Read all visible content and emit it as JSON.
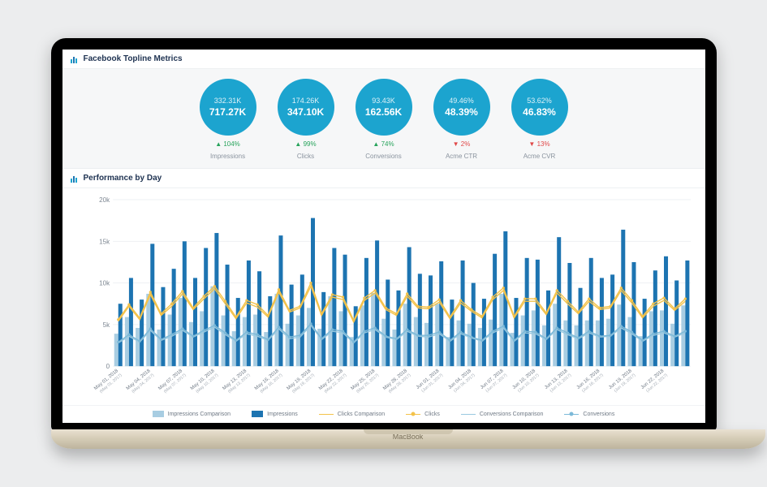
{
  "header": {
    "title": "Facebook Topline Metrics"
  },
  "kpi": {
    "circle_color": "#1ca4cf",
    "items": [
      {
        "prev": "332.31K",
        "current": "717.27K",
        "delta": "▲ 104%",
        "dir": "up",
        "label": "Impressions"
      },
      {
        "prev": "174.26K",
        "current": "347.10K",
        "delta": "▲ 99%",
        "dir": "up",
        "label": "Clicks"
      },
      {
        "prev": "93.43K",
        "current": "162.56K",
        "delta": "▲ 74%",
        "dir": "up",
        "label": "Conversions"
      },
      {
        "prev": "49.46%",
        "current": "48.39%",
        "delta": "▼ 2%",
        "dir": "down",
        "label": "Acme CTR"
      },
      {
        "prev": "53.62%",
        "current": "46.83%",
        "delta": "▼ 13%",
        "dir": "down",
        "label": "Acme CVR"
      }
    ]
  },
  "chart": {
    "title": "Performance by Day",
    "y_ticks": [
      0,
      5000,
      10000,
      15000,
      20000
    ],
    "y_tick_labels": [
      "0",
      "5k",
      "10k",
      "15k",
      "20k"
    ],
    "y_max": 20000,
    "colors": {
      "bar_comparison": "#a8cde2",
      "bar_current": "#1d74b1",
      "line_clicks_comparison": "#f3c24a",
      "line_clicks": "#f3c24a",
      "line_conversions_comparison": "#9ac9e0",
      "line_conversions": "#7cb9d8",
      "grid": "#eef1f3",
      "axis_text": "#7d8792"
    },
    "categories": [
      {
        "main": "May 01, 2018",
        "sub": "(May 01, 2017)"
      },
      {
        "main": "May 04, 2018",
        "sub": "(May 04, 2017)"
      },
      {
        "main": "May 07, 2018",
        "sub": "(May 07, 2017)"
      },
      {
        "main": "May 10, 2018",
        "sub": "(May 10, 2017)"
      },
      {
        "main": "May 13, 2018",
        "sub": "(May 13, 2017)"
      },
      {
        "main": "May 16, 2018",
        "sub": "(May 16, 2017)"
      },
      {
        "main": "May 19, 2018",
        "sub": "(May 19, 2017)"
      },
      {
        "main": "May 22, 2018",
        "sub": "(May 22, 2017)"
      },
      {
        "main": "May 25, 2018",
        "sub": "(May 25, 2017)"
      },
      {
        "main": "May 28, 2018",
        "sub": "(May 28, 2017)"
      },
      {
        "main": "Jun 01, 2018",
        "sub": "(Jun 01, 2017)"
      },
      {
        "main": "Jun 04, 2018",
        "sub": "(Jun 04, 2017)"
      },
      {
        "main": "Jun 07, 2018",
        "sub": "(Jun 07, 2017)"
      },
      {
        "main": "Jun 10, 2018",
        "sub": "(Jun 10, 2017)"
      },
      {
        "main": "Jun 13, 2018",
        "sub": "(Jun 13, 2017)"
      },
      {
        "main": "Jun 16, 2018",
        "sub": "(Jun 16, 2017)"
      },
      {
        "main": "Jun 19, 2018",
        "sub": "(Jun 19, 2017)"
      },
      {
        "main": "Jun 22, 2018",
        "sub": "(Jun 22, 2017)"
      }
    ],
    "series": {
      "impressions_comparison": [
        3900,
        5900,
        4600,
        8700,
        4400,
        6200,
        8200,
        5300,
        6600,
        9600,
        6100,
        4200,
        5900,
        6200,
        4100,
        8700,
        5100,
        6100,
        7000,
        4500,
        8400,
        6600,
        3500,
        7300,
        8800,
        5700,
        4400,
        7500,
        5900,
        5200,
        7500,
        3500,
        5500,
        5100,
        4600,
        5600,
        8700,
        4000,
        6100,
        6700,
        4900,
        7500,
        5500,
        4900,
        5500,
        5500,
        5700,
        7400,
        5900,
        3600,
        6600,
        6700,
        5100,
        7300
      ],
      "impressions": [
        7500,
        10600,
        8000,
        14700,
        9500,
        11700,
        15000,
        10600,
        14200,
        16000,
        12200,
        8200,
        12700,
        11400,
        8400,
        15700,
        9800,
        11000,
        17800,
        8900,
        14200,
        13400,
        7200,
        13000,
        15100,
        10400,
        9100,
        14300,
        11100,
        10900,
        12600,
        8000,
        12700,
        10000,
        8100,
        13500,
        16200,
        8200,
        13000,
        12800,
        9100,
        15500,
        12400,
        9400,
        13000,
        10600,
        11000,
        16400,
        12500,
        8100,
        11500,
        13200,
        10300,
        12700
      ],
      "clicks_comparison": [
        5400,
        7200,
        5600,
        8600,
        6100,
        7200,
        8700,
        6800,
        8100,
        9300,
        7500,
        5700,
        7600,
        7100,
        5900,
        8900,
        6500,
        7000,
        9600,
        6100,
        8300,
        8000,
        5300,
        7900,
        8800,
        6800,
        6100,
        8400,
        7000,
        6900,
        7700,
        5700,
        7600,
        6600,
        5800,
        8000,
        9100,
        5800,
        7800,
        7800,
        6200,
        8800,
        7500,
        6300,
        7800,
        6800,
        7000,
        9100,
        7600,
        5800,
        7200,
        7900,
        6700,
        7800
      ],
      "clicks": [
        5600,
        7400,
        5800,
        8900,
        6300,
        7500,
        9000,
        7000,
        8400,
        9600,
        7800,
        5900,
        7900,
        7400,
        6100,
        9200,
        6700,
        7200,
        10000,
        6300,
        8600,
        8300,
        5500,
        8200,
        9100,
        7000,
        6300,
        8700,
        7200,
        7100,
        8000,
        5900,
        7900,
        6800,
        6000,
        8300,
        9400,
        6000,
        8100,
        8100,
        6400,
        9100,
        7800,
        6500,
        8100,
        7000,
        7200,
        9400,
        7900,
        6000,
        7500,
        8200,
        6900,
        8100
      ],
      "conversions_comparison": [
        2800,
        3600,
        2900,
        4300,
        3100,
        3600,
        4300,
        3500,
        4100,
        4700,
        3800,
        3000,
        3900,
        3600,
        3100,
        4500,
        3300,
        3500,
        4900,
        3200,
        4200,
        4000,
        2800,
        4000,
        4400,
        3500,
        3200,
        4200,
        3600,
        3500,
        3900,
        3000,
        3900,
        3400,
        3000,
        4000,
        4600,
        3000,
        4000,
        3900,
        3200,
        4400,
        3800,
        3300,
        4000,
        3500,
        3600,
        4600,
        3900,
        3000,
        3700,
        4000,
        3500,
        4000
      ],
      "conversions": [
        2900,
        3800,
        3000,
        4500,
        3200,
        3800,
        4500,
        3600,
        4300,
        4900,
        4000,
        3100,
        4100,
        3800,
        3200,
        4700,
        3500,
        3700,
        5100,
        3300,
        4400,
        4200,
        2900,
        4200,
        4600,
        3600,
        3300,
        4400,
        3700,
        3700,
        4100,
        3100,
        4100,
        3500,
        3100,
        4200,
        4800,
        3100,
        4200,
        4100,
        3300,
        4600,
        4000,
        3400,
        4200,
        3600,
        3700,
        4800,
        4100,
        3100,
        3900,
        4200,
        3600,
        4200
      ]
    },
    "legend": [
      {
        "type": "box",
        "key": "impressions_comparison",
        "label": "Impressions Comparison"
      },
      {
        "type": "box",
        "key": "impressions",
        "label": "Impressions"
      },
      {
        "type": "line",
        "key": "clicks_comparison",
        "label": "Clicks Comparison"
      },
      {
        "type": "linedot",
        "key": "clicks",
        "label": "Clicks"
      },
      {
        "type": "line",
        "key": "conversions_comparison",
        "label": "Conversions Comparison"
      },
      {
        "type": "linedot",
        "key": "conversions",
        "label": "Conversions"
      }
    ]
  },
  "device": {
    "brand": "MacBook"
  }
}
